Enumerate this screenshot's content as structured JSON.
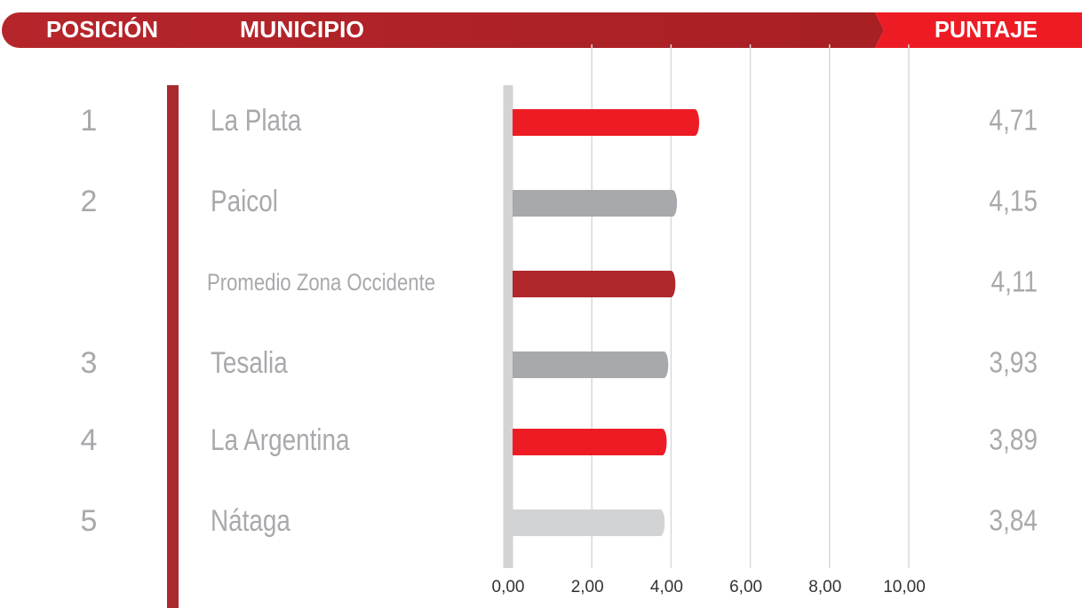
{
  "chart_data": {
    "type": "bar",
    "orientation": "horizontal",
    "headers": {
      "position": "POSICIÓN",
      "category": "MUNICIPIO",
      "value": "PUNTAJE"
    },
    "positions": [
      "1",
      "2",
      null,
      "3",
      "4",
      "5"
    ],
    "categories": [
      "La Plata",
      "Paicol",
      "Promedio Zona Occidente",
      "Tesalia",
      "La Argentina",
      "Nátaga"
    ],
    "values": [
      4.71,
      4.15,
      4.11,
      3.93,
      3.89,
      3.84
    ],
    "value_labels": [
      "4,71",
      "4,15",
      "4,11",
      "3,93",
      "3,89",
      "3,84"
    ],
    "colors": [
      "#ed1c24",
      "#a7a9ac",
      "#b0282b",
      "#a7a9ac",
      "#ed1c24",
      "#d1d3d4"
    ],
    "xlim": [
      0,
      10
    ],
    "xticks": [
      {
        "value": 0,
        "label": "0,00"
      },
      {
        "value": 2,
        "label": "2,00"
      },
      {
        "value": 4,
        "label": "4,00"
      },
      {
        "value": 6,
        "label": "6,00"
      },
      {
        "value": 8,
        "label": "8,00"
      },
      {
        "value": 10,
        "label": "10,00"
      }
    ],
    "grid": true
  }
}
